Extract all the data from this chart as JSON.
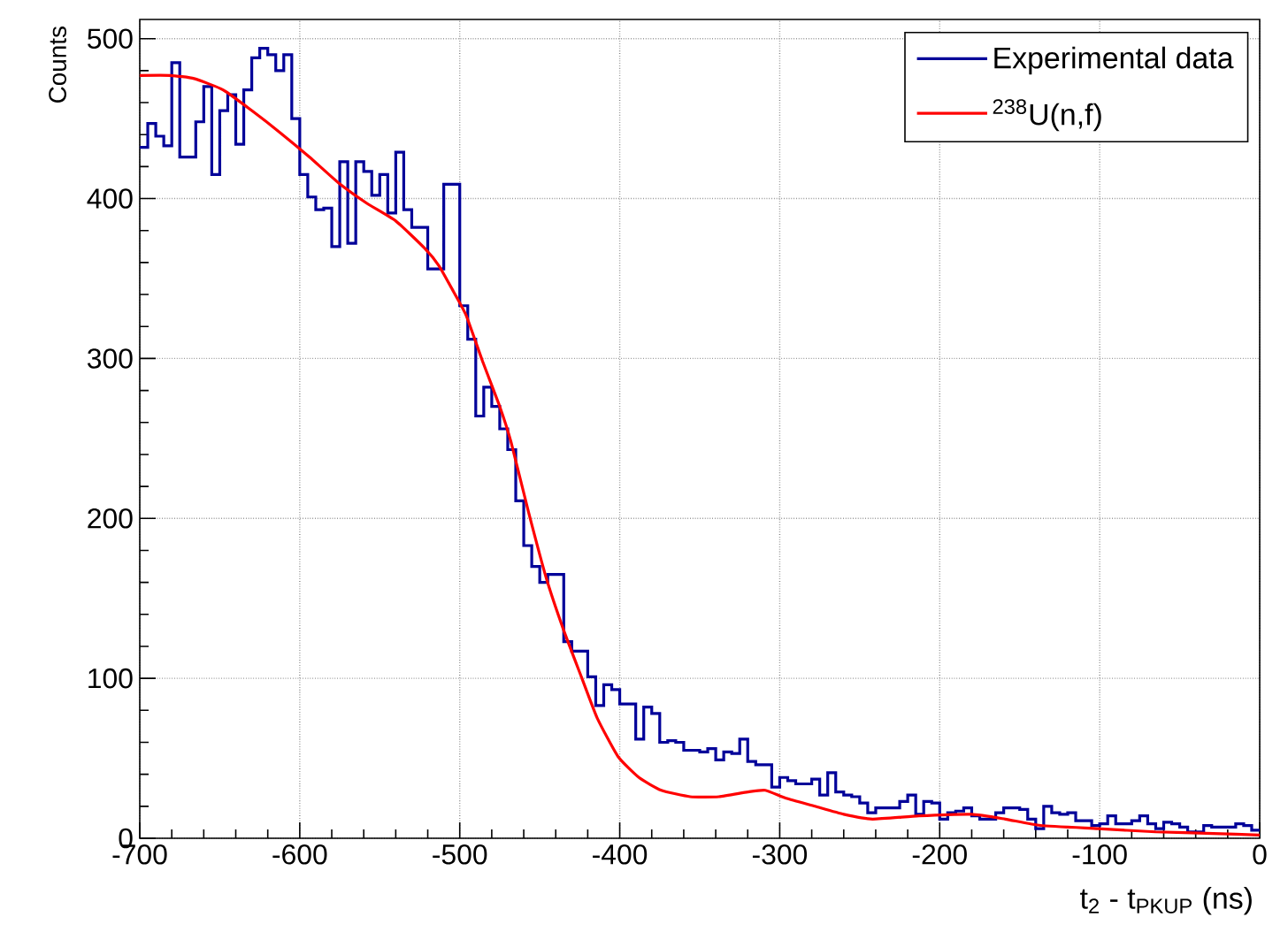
{
  "chart_data": {
    "type": "histogram",
    "xlabel": "t$_{2}$ - t$_{PKUP}$ (ns)",
    "ylabel": "Counts",
    "xlim": [
      -700,
      0
    ],
    "ylim": [
      0,
      512
    ],
    "xticks": [
      -700,
      -600,
      -500,
      -400,
      -300,
      -200,
      -100,
      0
    ],
    "yticks": [
      0,
      100,
      200,
      300,
      400,
      500
    ],
    "grid": true,
    "legend": "top right",
    "bins": [
      -700,
      -695,
      -690,
      -685,
      -680,
      -675,
      -670,
      -665,
      -660,
      -655,
      -650,
      -645,
      -640,
      -635,
      -630,
      -625,
      -620,
      -615,
      -610,
      -605,
      -600,
      -595,
      -590,
      -585,
      -580,
      -575,
      -570,
      -565,
      -560,
      -555,
      -550,
      -545,
      -540,
      -535,
      -530,
      -525,
      -520,
      -515,
      -510,
      -505,
      -500,
      -495,
      -490,
      -485,
      -480,
      -475,
      -470,
      -465,
      -460,
      -455,
      -450,
      -445,
      -440,
      -435,
      -430,
      -425,
      -420,
      -415,
      -410,
      -405,
      -400,
      -395,
      -390,
      -385,
      -380,
      -375,
      -370,
      -365,
      -360,
      -355,
      -350,
      -345,
      -340,
      -335,
      -330,
      -325,
      -320,
      -315,
      -310,
      -305,
      -300,
      -295,
      -290,
      -285,
      -280,
      -275,
      -270,
      -265,
      -260,
      -255,
      -250,
      -245,
      -240,
      -235,
      -230,
      -225,
      -220,
      -215,
      -210,
      -205,
      -200,
      -195,
      -190,
      -185,
      -180,
      -175,
      -170,
      -165,
      -160,
      -155,
      -150,
      -145,
      -140,
      -135,
      -130,
      -125,
      -120,
      -115,
      -110,
      -105,
      -100,
      -95,
      -90,
      -85,
      -80,
      -75,
      -70,
      -65,
      -60,
      -55,
      -50,
      -45,
      -40,
      -35,
      -30,
      -25,
      -20,
      -15,
      -10,
      -5,
      0
    ],
    "series": [
      {
        "name": "Experimental data",
        "color": "#000099",
        "values": [
          432,
          447,
          439,
          433,
          485,
          426,
          426,
          448,
          470,
          415,
          455,
          465,
          434,
          468,
          488,
          494,
          490,
          480,
          490,
          450,
          415,
          401,
          393,
          394,
          370,
          423,
          372,
          423,
          417,
          402,
          415,
          391,
          429,
          393,
          382,
          382,
          356,
          356,
          409,
          409,
          333,
          312,
          264,
          282,
          270,
          256,
          243,
          211,
          183,
          170,
          160,
          165,
          165,
          123,
          117,
          117,
          101,
          83,
          96,
          93,
          84,
          84,
          62,
          82,
          78,
          60,
          61,
          60,
          55,
          55,
          54,
          56,
          49,
          54,
          53,
          62,
          48,
          46,
          46,
          32,
          38,
          36,
          34,
          34,
          37,
          27,
          41,
          29,
          27,
          26,
          22,
          16,
          19,
          19,
          19,
          23,
          27,
          15,
          23,
          22,
          12,
          16,
          17,
          19,
          14,
          12,
          12,
          16,
          19,
          19,
          18,
          12,
          6,
          20,
          16,
          15,
          16,
          11,
          11,
          8,
          9,
          14,
          9,
          9,
          11,
          14,
          9,
          6,
          10,
          9,
          7,
          4,
          4,
          8,
          7,
          7,
          7,
          9,
          8,
          5
        ]
      },
      {
        "name": "$^{238}$U(n,f)",
        "type": "line",
        "color": "#ff0000",
        "x": [
          -700,
          -681,
          -666,
          -648,
          -630,
          -612,
          -594,
          -576,
          -558,
          -540,
          -522,
          -513,
          -504,
          -496,
          -486,
          -475,
          -468,
          -457,
          -446,
          -435,
          -424,
          -414,
          -401,
          -388,
          -374,
          -356,
          -338,
          -320,
          -309,
          -296,
          -278,
          -260,
          -242,
          -213,
          -180,
          -159,
          -137,
          -101,
          -65,
          -29,
          0
        ],
        "values": [
          477,
          477,
          475,
          468,
          455,
          441,
          426,
          410,
          397,
          386,
          369,
          358,
          342,
          327,
          299,
          270,
          248,
          204,
          163,
          130,
          101,
          75,
          51,
          38,
          30,
          26,
          26,
          29,
          30,
          25,
          20,
          15,
          12,
          14,
          15,
          12,
          8,
          6,
          4,
          3,
          2
        ]
      }
    ]
  }
}
